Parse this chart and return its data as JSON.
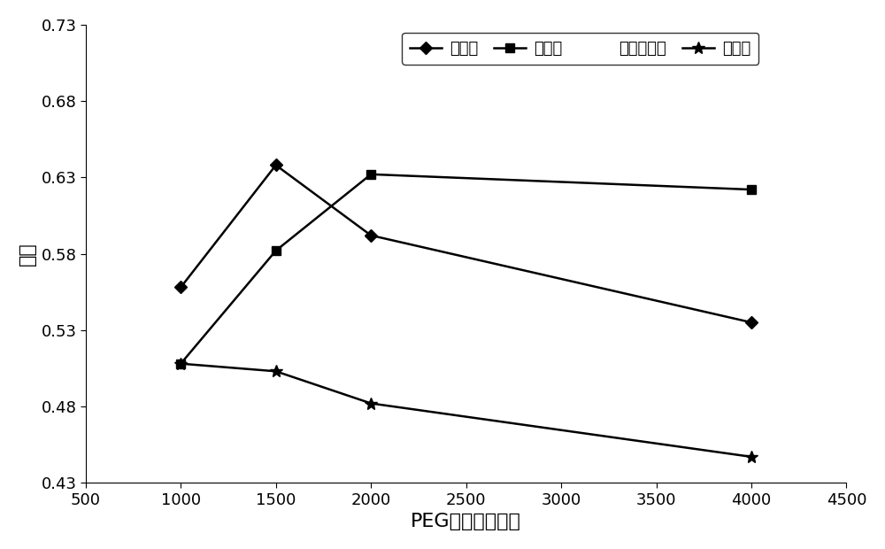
{
  "title": "",
  "xlabel": "PEG（分子质量）",
  "ylabel": "纯度",
  "xlim": [
    500,
    4500
  ],
  "ylim": [
    0.43,
    0.73
  ],
  "xticks": [
    500,
    1000,
    1500,
    2000,
    2500,
    3000,
    3500,
    4000,
    4500
  ],
  "yticks": [
    0.43,
    0.48,
    0.53,
    0.58,
    0.63,
    0.68,
    0.73
  ],
  "series": [
    {
      "label": "磷酸钒",
      "x": [
        1000,
        1500,
        2000,
        4000
      ],
      "y": [
        0.558,
        0.638,
        0.592,
        0.535
      ],
      "color": "#000000",
      "marker": "D",
      "markersize": 7,
      "linewidth": 1.8
    },
    {
      "label": "磷酸鿣",
      "x": [
        1000,
        1500,
        2000,
        4000
      ],
      "y": [
        0.508,
        0.582,
        0.632,
        0.622
      ],
      "color": "#000000",
      "marker": "s",
      "markersize": 7,
      "linewidth": 1.8
    },
    {
      "label": "酒石酸鿣钒",
      "x": null,
      "y": null,
      "color": "#000000",
      "marker": null,
      "markersize": 0,
      "linewidth": 0
    },
    {
      "label": "硫酸锢",
      "x": [
        1000,
        1500,
        2000,
        4000
      ],
      "y": [
        0.508,
        0.503,
        0.482,
        0.447
      ],
      "color": "#000000",
      "marker": "*",
      "markersize": 10,
      "linewidth": 1.8
    }
  ],
  "background_color": "#ffffff",
  "legend_fontsize": 13,
  "axis_label_fontsize": 16,
  "tick_fontsize": 13
}
